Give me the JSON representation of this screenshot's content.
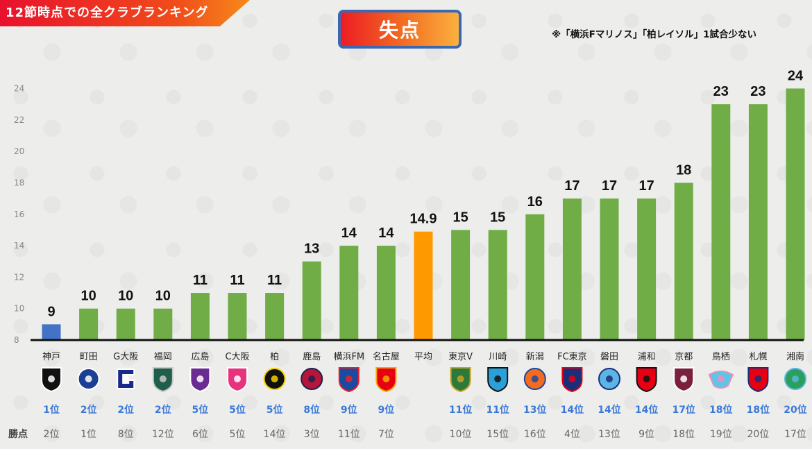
{
  "banner": {
    "text": "12節時点での全クラブランキング"
  },
  "header": {
    "title": "失点",
    "note": "※「横浜Fマリノス」「柏レイソル」1試合少ない"
  },
  "row_headers": {
    "points": "勝点"
  },
  "colors": {
    "default": "#70ad47",
    "first": "#4472c4",
    "average": "#ff9900"
  },
  "chart_data": {
    "type": "bar",
    "title": "失点",
    "ylim": [
      8,
      24
    ],
    "yticks": [
      8,
      10,
      12,
      14,
      16,
      18,
      20,
      22,
      24
    ],
    "grid": false,
    "categories": [
      "神戸",
      "町田",
      "G大阪",
      "福岡",
      "広島",
      "C大阪",
      "柏",
      "鹿島",
      "横浜FM",
      "名古屋",
      "平均",
      "東京V",
      "川崎",
      "新潟",
      "FC東京",
      "磐田",
      "浦和",
      "京都",
      "鳥栖",
      "札幌",
      "湘南"
    ],
    "values": [
      9,
      10,
      10,
      10,
      11,
      11,
      11,
      13,
      14,
      14,
      14.9,
      15,
      15,
      16,
      17,
      17,
      17,
      18,
      23,
      23,
      24
    ],
    "value_labels": [
      "9",
      "10",
      "10",
      "10",
      "11",
      "11",
      "11",
      "13",
      "14",
      "14",
      "14.9",
      "15",
      "15",
      "16",
      "17",
      "17",
      "17",
      "18",
      "23",
      "23",
      "24"
    ],
    "highlight": {
      "0": "first",
      "10": "average"
    },
    "conceded_rank": [
      "1位",
      "2位",
      "2位",
      "2位",
      "5位",
      "5位",
      "5位",
      "8位",
      "9位",
      "9位",
      "",
      "11位",
      "11位",
      "13位",
      "14位",
      "14位",
      "14位",
      "17位",
      "18位",
      "18位",
      "20位"
    ],
    "points_rank": [
      "2位",
      "1位",
      "8位",
      "12位",
      "6位",
      "5位",
      "14位",
      "3位",
      "11位",
      "7位",
      "",
      "10位",
      "15位",
      "16位",
      "4位",
      "13位",
      "9位",
      "18位",
      "19位",
      "20位",
      "17位"
    ]
  },
  "logos": [
    {
      "icon": "vissel-kobe-crest",
      "c1": "#111111",
      "c2": "#ffffff",
      "shape": "shield"
    },
    {
      "icon": "machida-zelvia-crest",
      "c1": "#1b3f94",
      "c2": "#ffffff",
      "shape": "circle"
    },
    {
      "icon": "gamba-osaka-crest",
      "c1": "#1a2a8a",
      "c2": "#ffffff",
      "shape": "g"
    },
    {
      "icon": "avispa-fukuoka-crest",
      "c1": "#1f5e4a",
      "c2": "#c9c9c9",
      "shape": "shield"
    },
    {
      "icon": "sanfrecce-hiroshima-crest",
      "c1": "#6a2c91",
      "c2": "#ffffff",
      "shape": "shield"
    },
    {
      "icon": "cerezo-osaka-crest",
      "c1": "#e8327d",
      "c2": "#ffffff",
      "shape": "shield"
    },
    {
      "icon": "kashiwa-reysol-crest",
      "c1": "#111111",
      "c2": "#f2d000",
      "shape": "circle"
    },
    {
      "icon": "kashima-antlers-crest",
      "c1": "#b5163a",
      "c2": "#1a2150",
      "shape": "circle"
    },
    {
      "icon": "yokohama-f-marinos-crest",
      "c1": "#1b4aa0",
      "c2": "#e6212a",
      "shape": "shield"
    },
    {
      "icon": "nagoya-grampus-crest",
      "c1": "#e60012",
      "c2": "#f6a800",
      "shape": "shield"
    },
    null,
    {
      "icon": "tokyo-verdy-crest",
      "c1": "#2b7a3a",
      "c2": "#c9a227",
      "shape": "shield"
    },
    {
      "icon": "kawasaki-frontale-crest",
      "c1": "#2aa0d8",
      "c2": "#111111",
      "shape": "shield"
    },
    {
      "icon": "albirex-niigata-crest",
      "c1": "#f26b21",
      "c2": "#1b4aa0",
      "shape": "circle"
    },
    {
      "icon": "fc-tokyo-crest",
      "c1": "#1a2e7a",
      "c2": "#e60012",
      "shape": "shield"
    },
    {
      "icon": "jubilo-iwata-crest",
      "c1": "#5bb5e5",
      "c2": "#1a2e7a",
      "shape": "circle"
    },
    {
      "icon": "urawa-reds-crest",
      "c1": "#e60012",
      "c2": "#111111",
      "shape": "shield"
    },
    {
      "icon": "kyoto-sanga-crest",
      "c1": "#7a1f3d",
      "c2": "#ffffff",
      "shape": "shield"
    },
    {
      "icon": "sagan-tosu-crest",
      "c1": "#5cc6e8",
      "c2": "#f08cb8",
      "shape": "wing"
    },
    {
      "icon": "consadole-sapporo-crest",
      "c1": "#e60012",
      "c2": "#1a2e7a",
      "shape": "shield"
    },
    {
      "icon": "shonan-bellmare-crest",
      "c1": "#2aa05a",
      "c2": "#5bb5e5",
      "shape": "circle"
    }
  ]
}
